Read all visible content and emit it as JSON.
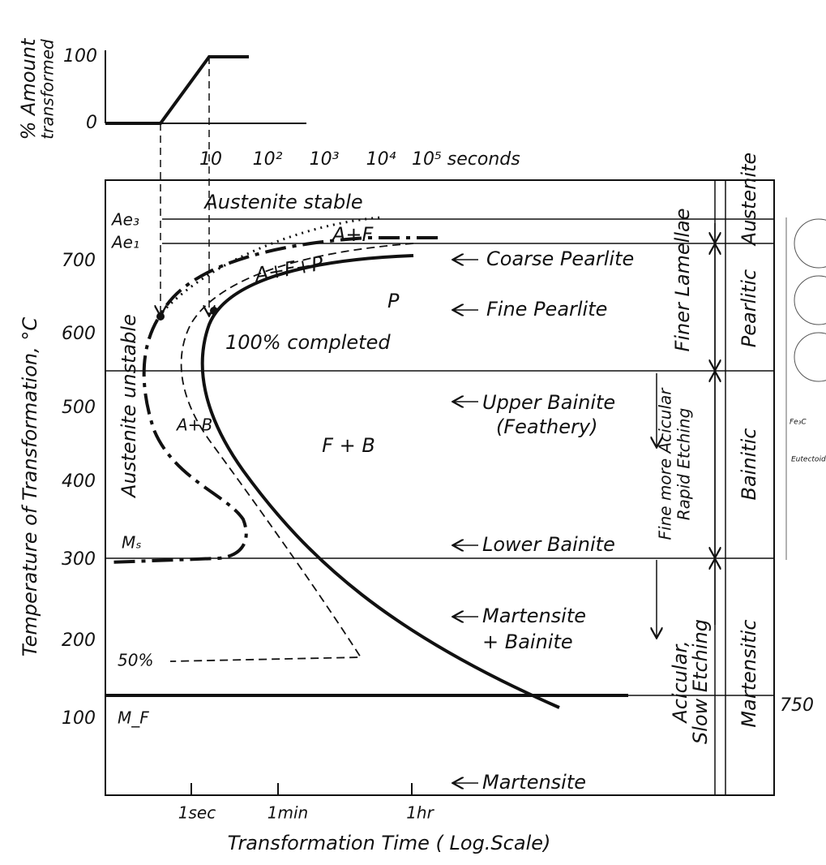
{
  "inset": {
    "y_label_line1": "% Amount",
    "y_label_line2": "transformed",
    "ticks": [
      "100",
      "0"
    ],
    "x_ticks": [
      "10",
      "10²",
      "10³",
      "10⁴",
      "10⁵ seconds"
    ]
  },
  "axes": {
    "y_label": "Temperature of Transformation, °C",
    "y_ticks": [
      "700",
      "600",
      "500",
      "400",
      "300",
      "200",
      "100"
    ],
    "x_ticks": [
      "1sec",
      "1min",
      "1hr"
    ],
    "x_label": "Transformation Time  ( Log.Scale)"
  },
  "regions": {
    "austenite_stable": "Austenite stable",
    "austenite_unstable": "Austenite unstable",
    "ae3": "Ae₃",
    "ae1": "Ae₁",
    "a_f": "A+F",
    "a_f_p": "A+F+P",
    "p": "P",
    "completed": "100% completed",
    "a_b": "A+B",
    "f_b": "F + B",
    "ms": "Mₛ",
    "fifty": "50%",
    "mf": "M_F"
  },
  "products": [
    "Coarse Pearlite",
    "Fine Pearlite",
    "Upper Bainite",
    "(Feathery)",
    "Lower Bainite",
    "Martensite",
    "+ Bainite",
    "Martensite"
  ],
  "trends": {
    "finer_lamellae": "Finer Lamellae",
    "fine_acicular": "Fine more Acicular",
    "rapid_etching": "Rapid Etching",
    "acicular": "Acicular,",
    "slow_etching": "Slow Etching"
  },
  "structures": [
    "Austenite",
    "Pearlitic",
    "Bainitic",
    "Martensitic"
  ],
  "side": {
    "fe3c": "Fe₃C",
    "eutectoid": "Eutectoid",
    "number": "750"
  }
}
